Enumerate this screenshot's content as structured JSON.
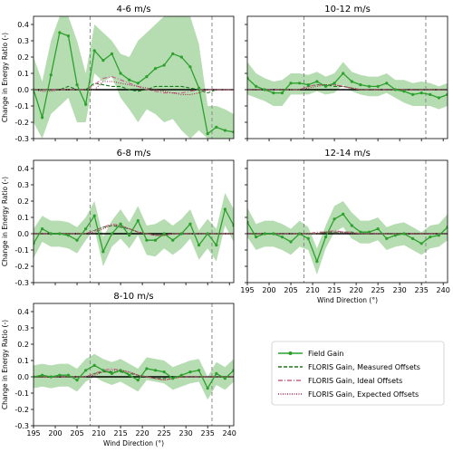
{
  "chart_data": {
    "type": "line",
    "x": [
      195,
      197,
      199,
      201,
      203,
      205,
      207,
      209,
      211,
      213,
      215,
      217,
      219,
      221,
      223,
      225,
      227,
      229,
      231,
      233,
      235,
      237,
      239,
      241
    ],
    "xlim": [
      195,
      241
    ],
    "xticks": [
      195,
      200,
      205,
      210,
      215,
      220,
      225,
      230,
      235,
      240
    ],
    "ylim": [
      -0.3,
      0.45
    ],
    "yticks": [
      -0.3,
      -0.2,
      -0.1,
      0.0,
      0.1,
      0.2,
      0.3,
      0.4
    ],
    "xlabel": "Wind Direction (°)",
    "ylabel": "Change in Energy Ratio (-)",
    "vlines": [
      208,
      236
    ],
    "colors": {
      "field": "#2ca02c",
      "band": "#a9d7a3",
      "measured": "#1a7a1a",
      "ideal": "#c6628a",
      "expected": "#9b2a4a"
    },
    "legend": {
      "position": "lower-right",
      "entries": [
        "Field Gain",
        "FLORIS Gain, Measured Offsets",
        "FLORIS Gain, Ideal Offsets",
        "FLORIS Gain, Expected Offsets"
      ]
    },
    "panels": [
      {
        "title": "4-6 m/s",
        "field": [
          0.0,
          -0.17,
          0.09,
          0.35,
          0.33,
          0.03,
          -0.09,
          0.24,
          0.18,
          0.22,
          0.1,
          0.06,
          0.04,
          0.08,
          0.13,
          0.15,
          0.22,
          0.2,
          0.14,
          0.01,
          -0.27,
          -0.23,
          -0.25,
          -0.26
        ],
        "lower": [
          -0.2,
          -0.3,
          -0.15,
          -0.1,
          -0.05,
          -0.2,
          -0.2,
          0.1,
          0.05,
          0.08,
          -0.05,
          -0.12,
          -0.2,
          -0.12,
          -0.15,
          -0.2,
          -0.18,
          -0.25,
          -0.3,
          -0.25,
          -0.3,
          -0.3,
          -0.3,
          -0.3
        ],
        "upper": [
          0.2,
          0.05,
          0.3,
          0.45,
          0.45,
          0.3,
          0.1,
          0.4,
          0.35,
          0.3,
          0.22,
          0.2,
          0.3,
          0.35,
          0.4,
          0.45,
          0.45,
          0.45,
          0.45,
          0.28,
          -0.1,
          -0.1,
          -0.12,
          -0.15
        ],
        "measured": [
          0.0,
          0.0,
          0.0,
          0.0,
          0.02,
          0.0,
          0.0,
          0.04,
          0.03,
          0.02,
          0.02,
          0.0,
          -0.01,
          0.0,
          0.02,
          0.02,
          0.02,
          0.02,
          0.01,
          0.0,
          -0.02,
          0.0,
          0.0,
          0.0
        ],
        "ideal": [
          0.0,
          0.0,
          0.0,
          0.0,
          0.0,
          0.0,
          0.0,
          0.03,
          0.07,
          0.08,
          0.06,
          0.04,
          0.02,
          0.0,
          -0.01,
          -0.02,
          -0.02,
          -0.02,
          -0.01,
          0.0,
          0.0,
          0.0,
          0.0,
          0.0
        ],
        "expected": [
          0.0,
          -0.01,
          -0.01,
          0.0,
          0.0,
          0.0,
          0.0,
          0.0,
          0.05,
          0.05,
          0.04,
          0.03,
          0.02,
          0.01,
          0.0,
          -0.01,
          -0.02,
          -0.03,
          -0.03,
          -0.02,
          0.0,
          0.0,
          0.0,
          0.0
        ]
      },
      {
        "title": "10-12 m/s",
        "field": [
          0.07,
          0.02,
          0.0,
          -0.02,
          -0.02,
          0.04,
          0.04,
          0.03,
          0.05,
          0.02,
          0.04,
          0.1,
          0.05,
          0.03,
          0.02,
          0.02,
          0.04,
          0.0,
          -0.01,
          -0.03,
          -0.02,
          -0.03,
          -0.05,
          -0.03
        ],
        "lower": [
          -0.03,
          -0.05,
          -0.07,
          -0.1,
          -0.1,
          -0.03,
          -0.03,
          -0.03,
          -0.01,
          -0.03,
          -0.02,
          0.03,
          -0.01,
          -0.03,
          -0.04,
          -0.04,
          -0.02,
          -0.05,
          -0.08,
          -0.1,
          -0.1,
          -0.1,
          -0.12,
          -0.1
        ],
        "upper": [
          0.17,
          0.1,
          0.07,
          0.05,
          0.06,
          0.1,
          0.1,
          0.09,
          0.11,
          0.08,
          0.1,
          0.17,
          0.11,
          0.09,
          0.08,
          0.08,
          0.1,
          0.06,
          0.06,
          0.04,
          0.05,
          0.04,
          0.02,
          0.04
        ],
        "measured": [
          0.0,
          0.0,
          0.0,
          0.0,
          0.0,
          0.0,
          0.0,
          0.02,
          0.03,
          0.03,
          0.02,
          0.02,
          0.01,
          0.0,
          0.0,
          0.0,
          0.0,
          0.0,
          0.0,
          0.0,
          0.0,
          0.0,
          0.0,
          0.0
        ],
        "ideal": [
          0.0,
          0.0,
          0.0,
          0.0,
          0.0,
          0.0,
          0.0,
          0.02,
          0.03,
          0.03,
          0.03,
          0.02,
          0.01,
          0.0,
          0.0,
          0.0,
          0.0,
          0.0,
          0.0,
          0.0,
          0.0,
          0.0,
          0.0,
          0.0
        ],
        "expected": [
          0.0,
          0.0,
          0.0,
          0.0,
          0.0,
          0.0,
          0.0,
          0.01,
          0.02,
          0.03,
          0.03,
          0.02,
          0.01,
          0.0,
          0.0,
          0.0,
          0.0,
          0.0,
          0.0,
          0.0,
          0.0,
          0.0,
          0.0,
          0.0
        ]
      },
      {
        "title": "6-8 m/s",
        "field": [
          -0.06,
          0.03,
          0.0,
          0.0,
          -0.01,
          -0.04,
          0.03,
          0.11,
          -0.11,
          0.0,
          0.06,
          -0.01,
          0.08,
          -0.04,
          -0.04,
          0.0,
          -0.04,
          0.0,
          0.06,
          -0.07,
          0.0,
          -0.07,
          0.15,
          0.05
        ],
        "lower": [
          -0.15,
          -0.05,
          -0.08,
          -0.08,
          -0.09,
          -0.12,
          -0.04,
          0.03,
          -0.2,
          -0.08,
          -0.03,
          -0.09,
          -0.01,
          -0.13,
          -0.14,
          -0.09,
          -0.13,
          -0.09,
          -0.03,
          -0.16,
          -0.09,
          -0.17,
          0.05,
          -0.05
        ],
        "upper": [
          0.03,
          0.11,
          0.08,
          0.08,
          0.07,
          0.04,
          0.1,
          0.2,
          -0.02,
          0.08,
          0.15,
          0.07,
          0.17,
          0.05,
          0.06,
          0.09,
          0.05,
          0.09,
          0.15,
          0.02,
          0.09,
          0.03,
          0.25,
          0.15
        ],
        "measured": [
          0.0,
          0.0,
          0.0,
          0.0,
          0.0,
          0.0,
          0.0,
          0.02,
          0.04,
          0.05,
          0.04,
          0.03,
          0.01,
          0.0,
          -0.01,
          -0.01,
          0.0,
          0.0,
          0.0,
          0.0,
          0.0,
          0.0,
          0.0,
          0.0
        ],
        "ideal": [
          0.0,
          0.0,
          0.0,
          0.0,
          0.0,
          0.0,
          0.0,
          0.02,
          0.04,
          0.06,
          0.05,
          0.03,
          0.01,
          0.0,
          -0.01,
          -0.01,
          0.0,
          0.0,
          0.0,
          0.0,
          0.0,
          0.0,
          0.0,
          0.0
        ],
        "expected": [
          0.0,
          0.0,
          0.0,
          0.0,
          0.0,
          0.0,
          0.0,
          0.01,
          0.03,
          0.05,
          0.05,
          0.03,
          0.01,
          0.0,
          -0.01,
          -0.01,
          0.0,
          0.0,
          0.0,
          0.0,
          0.0,
          0.0,
          0.0,
          0.0
        ]
      },
      {
        "title": "12-14 m/s",
        "field": [
          0.07,
          -0.02,
          0.0,
          0.0,
          -0.02,
          -0.05,
          0.0,
          -0.03,
          -0.17,
          -0.02,
          0.09,
          0.12,
          0.05,
          0.01,
          0.01,
          0.03,
          -0.03,
          -0.01,
          0.0,
          -0.03,
          -0.06,
          -0.02,
          -0.01,
          0.04
        ],
        "lower": [
          -0.02,
          -0.1,
          -0.08,
          -0.08,
          -0.1,
          -0.13,
          -0.08,
          -0.1,
          -0.25,
          -0.09,
          0.01,
          0.04,
          -0.03,
          -0.06,
          -0.06,
          -0.04,
          -0.1,
          -0.08,
          -0.07,
          -0.1,
          -0.13,
          -0.09,
          -0.08,
          -0.04
        ],
        "upper": [
          0.16,
          0.06,
          0.08,
          0.08,
          0.06,
          0.03,
          0.08,
          0.04,
          -0.09,
          0.05,
          0.17,
          0.2,
          0.13,
          0.08,
          0.08,
          0.1,
          0.04,
          0.06,
          0.07,
          0.04,
          0.01,
          0.05,
          0.06,
          0.12
        ],
        "measured": [
          0.0,
          0.0,
          0.0,
          0.0,
          0.0,
          0.0,
          0.0,
          0.0,
          0.0,
          0.01,
          0.01,
          0.01,
          0.01,
          0.0,
          0.0,
          0.0,
          0.0,
          0.0,
          0.0,
          0.0,
          0.0,
          0.0,
          0.0,
          0.0
        ],
        "ideal": [
          0.0,
          0.0,
          0.0,
          0.0,
          0.0,
          0.0,
          0.0,
          0.0,
          0.01,
          0.01,
          0.02,
          0.01,
          0.01,
          0.0,
          0.0,
          0.0,
          0.0,
          0.0,
          0.0,
          0.0,
          0.0,
          0.0,
          0.0,
          0.0
        ],
        "expected": [
          0.0,
          0.0,
          0.0,
          0.0,
          0.0,
          0.0,
          0.0,
          0.0,
          0.0,
          0.01,
          0.01,
          0.01,
          0.0,
          0.0,
          0.0,
          0.0,
          0.0,
          0.0,
          0.0,
          0.0,
          0.0,
          0.0,
          0.0,
          0.0
        ]
      },
      {
        "title": "8-10 m/s",
        "field": [
          0.0,
          0.01,
          0.0,
          0.01,
          0.01,
          -0.02,
          0.04,
          0.07,
          0.04,
          0.02,
          0.04,
          0.01,
          -0.02,
          0.05,
          0.04,
          0.03,
          -0.01,
          0.01,
          0.03,
          0.04,
          -0.07,
          0.02,
          -0.01,
          0.04
        ],
        "lower": [
          -0.07,
          -0.06,
          -0.07,
          -0.06,
          -0.06,
          -0.09,
          -0.03,
          0.0,
          -0.03,
          -0.05,
          -0.03,
          -0.06,
          -0.09,
          -0.02,
          -0.03,
          -0.04,
          -0.08,
          -0.06,
          -0.04,
          -0.03,
          -0.14,
          -0.05,
          -0.08,
          -0.03
        ],
        "upper": [
          0.07,
          0.08,
          0.07,
          0.08,
          0.08,
          0.05,
          0.11,
          0.14,
          0.11,
          0.09,
          0.11,
          0.08,
          0.05,
          0.12,
          0.11,
          0.1,
          0.06,
          0.08,
          0.1,
          0.11,
          0.0,
          0.09,
          0.06,
          0.11
        ],
        "measured": [
          0.0,
          0.0,
          0.0,
          0.0,
          0.0,
          0.0,
          0.0,
          0.02,
          0.03,
          0.03,
          0.03,
          0.02,
          0.01,
          0.0,
          -0.01,
          -0.01,
          0.0,
          0.0,
          0.0,
          0.0,
          0.0,
          0.0,
          0.0,
          0.0
        ],
        "ideal": [
          0.0,
          0.0,
          0.0,
          0.0,
          0.0,
          0.0,
          0.0,
          0.02,
          0.04,
          0.05,
          0.04,
          0.03,
          0.01,
          0.0,
          -0.01,
          -0.02,
          -0.01,
          0.0,
          0.0,
          0.0,
          0.0,
          0.0,
          0.0,
          0.0
        ],
        "expected": [
          0.0,
          0.0,
          0.0,
          0.0,
          0.0,
          0.0,
          0.0,
          0.01,
          0.03,
          0.04,
          0.04,
          0.03,
          0.01,
          0.0,
          -0.01,
          -0.02,
          -0.01,
          0.0,
          0.0,
          0.0,
          0.0,
          0.0,
          0.0,
          0.0
        ]
      }
    ]
  }
}
